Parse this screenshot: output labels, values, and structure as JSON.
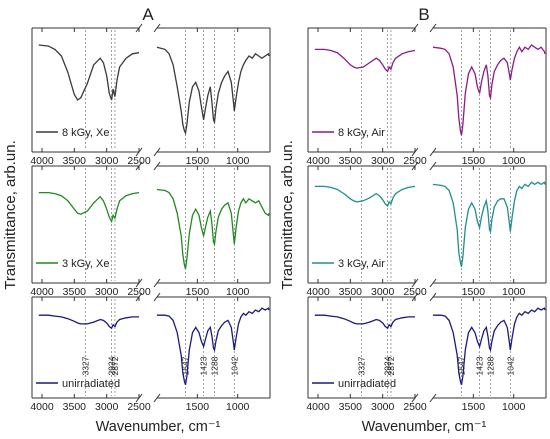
{
  "figure": {
    "panel_labels": [
      "A",
      "B"
    ],
    "ylabel": "Transmittance, arb.un.",
    "xlabel": "Wavenumber, cm⁻¹",
    "axis_break_mark": "//",
    "x_ticks": [
      "4000",
      "3500",
      "3000",
      "2500",
      "1500",
      "1000"
    ],
    "x_tick_values": [
      4000,
      3500,
      3000,
      2500,
      1500,
      1000
    ],
    "x_axis": {
      "left_segment": [
        4000,
        2500
      ],
      "right_segment": [
        2000,
        600
      ],
      "reversed": true,
      "break_between": [
        2500,
        2000
      ]
    },
    "peak_labels": [
      "3327",
      "2924",
      "2872",
      "1647",
      "1423",
      "1288",
      "1042"
    ],
    "peak_positions": [
      3327,
      2924,
      2872,
      1647,
      1423,
      1288,
      1042
    ],
    "colors": {
      "xe_8": "#3a3a3a",
      "xe_3": "#1f8a1f",
      "air_8": "#8b1a8b",
      "air_3": "#1f8f8f",
      "unirradiated": "#1a1a80"
    }
  },
  "chart_data": [
    {
      "type": "line",
      "panel": "A",
      "title": "A",
      "ylabel": "Transmittance, arb.un.",
      "xlabel": "Wavenumber, cm⁻¹",
      "stacked_subplots": true,
      "x_reversed": true,
      "axis_break": [
        2500,
        2000
      ],
      "series": [
        {
          "name": "8 kGy, Xe",
          "color": "#3a3a3a",
          "x": [
            4050,
            3900,
            3800,
            3700,
            3600,
            3500,
            3450,
            3400,
            3300,
            3200,
            3100,
            3050,
            3000,
            2960,
            2924,
            2900,
            2872,
            2840,
            2800,
            2700,
            2600,
            2500,
            2000,
            1900,
            1850,
            1800,
            1750,
            1700,
            1680,
            1660,
            1647,
            1630,
            1600,
            1560,
            1520,
            1480,
            1450,
            1423,
            1400,
            1370,
            1340,
            1320,
            1300,
            1288,
            1270,
            1240,
            1200,
            1160,
            1120,
            1080,
            1050,
            1042,
            1020,
            990,
            960,
            930,
            900,
            860,
            820,
            780,
            740,
            700,
            660,
            620,
            600
          ],
          "values": [
            0.9,
            0.89,
            0.86,
            0.8,
            0.65,
            0.45,
            0.4,
            0.42,
            0.55,
            0.72,
            0.78,
            0.74,
            0.62,
            0.46,
            0.4,
            0.5,
            0.43,
            0.58,
            0.7,
            0.78,
            0.82,
            0.83,
            0.88,
            0.86,
            0.82,
            0.72,
            0.52,
            0.3,
            0.18,
            0.12,
            0.1,
            0.18,
            0.38,
            0.52,
            0.56,
            0.48,
            0.34,
            0.22,
            0.32,
            0.44,
            0.52,
            0.38,
            0.22,
            0.2,
            0.32,
            0.46,
            0.56,
            0.62,
            0.66,
            0.56,
            0.36,
            0.3,
            0.42,
            0.56,
            0.66,
            0.72,
            0.76,
            0.8,
            0.78,
            0.82,
            0.8,
            0.78,
            0.8,
            0.82,
            0.8
          ]
        },
        {
          "name": "3 kGy, Xe",
          "color": "#1f8a1f",
          "x": [
            4050,
            3900,
            3800,
            3700,
            3600,
            3500,
            3450,
            3400,
            3300,
            3200,
            3100,
            3050,
            3000,
            2960,
            2924,
            2900,
            2872,
            2840,
            2800,
            2700,
            2600,
            2500,
            2000,
            1900,
            1850,
            1800,
            1750,
            1700,
            1680,
            1660,
            1647,
            1630,
            1600,
            1560,
            1520,
            1480,
            1450,
            1423,
            1400,
            1370,
            1340,
            1320,
            1300,
            1288,
            1270,
            1240,
            1200,
            1160,
            1120,
            1080,
            1050,
            1042,
            1020,
            990,
            960,
            930,
            900,
            860,
            820,
            780,
            740,
            700,
            660,
            620,
            600
          ],
          "values": [
            0.8,
            0.8,
            0.79,
            0.77,
            0.72,
            0.64,
            0.6,
            0.59,
            0.62,
            0.7,
            0.76,
            0.72,
            0.64,
            0.56,
            0.52,
            0.58,
            0.55,
            0.64,
            0.72,
            0.77,
            0.79,
            0.8,
            0.83,
            0.82,
            0.8,
            0.74,
            0.6,
            0.38,
            0.2,
            0.1,
            0.06,
            0.16,
            0.4,
            0.58,
            0.64,
            0.58,
            0.46,
            0.38,
            0.46,
            0.56,
            0.62,
            0.5,
            0.32,
            0.3,
            0.42,
            0.56,
            0.64,
            0.68,
            0.7,
            0.6,
            0.36,
            0.3,
            0.46,
            0.62,
            0.7,
            0.74,
            0.7,
            0.74,
            0.72,
            0.7,
            0.72,
            0.66,
            0.6,
            0.58,
            0.6
          ]
        },
        {
          "name": "unirradiated",
          "color": "#1a1a80",
          "x": [
            4050,
            3900,
            3800,
            3700,
            3600,
            3500,
            3450,
            3400,
            3300,
            3200,
            3100,
            3050,
            3000,
            2960,
            2924,
            2900,
            2872,
            2840,
            2800,
            2700,
            2600,
            2500,
            2000,
            1900,
            1850,
            1800,
            1750,
            1700,
            1680,
            1660,
            1647,
            1630,
            1600,
            1560,
            1520,
            1480,
            1450,
            1423,
            1400,
            1370,
            1340,
            1320,
            1300,
            1288,
            1270,
            1240,
            1200,
            1160,
            1120,
            1080,
            1050,
            1042,
            1020,
            990,
            960,
            930,
            900,
            860,
            820,
            780,
            740,
            700,
            660,
            620,
            600
          ],
          "values": [
            0.86,
            0.86,
            0.85,
            0.84,
            0.82,
            0.79,
            0.77,
            0.76,
            0.76,
            0.78,
            0.81,
            0.8,
            0.77,
            0.73,
            0.71,
            0.75,
            0.73,
            0.78,
            0.81,
            0.83,
            0.84,
            0.84,
            0.86,
            0.86,
            0.85,
            0.8,
            0.66,
            0.4,
            0.2,
            0.1,
            0.06,
            0.16,
            0.46,
            0.66,
            0.72,
            0.66,
            0.56,
            0.5,
            0.58,
            0.68,
            0.72,
            0.62,
            0.48,
            0.46,
            0.56,
            0.68,
            0.74,
            0.78,
            0.8,
            0.72,
            0.52,
            0.46,
            0.6,
            0.76,
            0.84,
            0.88,
            0.86,
            0.9,
            0.88,
            0.92,
            0.9,
            0.94,
            0.92,
            0.94,
            0.92
          ]
        }
      ]
    },
    {
      "type": "line",
      "panel": "B",
      "title": "B",
      "ylabel": "Transmittance, arb.un.",
      "xlabel": "Wavenumber, cm⁻¹",
      "stacked_subplots": true,
      "x_reversed": true,
      "axis_break": [
        2500,
        2000
      ],
      "series": [
        {
          "name": "8 kGy, Air",
          "color": "#8b1a8b",
          "x": [
            4050,
            3900,
            3800,
            3700,
            3600,
            3500,
            3450,
            3400,
            3300,
            3200,
            3100,
            3050,
            3000,
            2960,
            2924,
            2900,
            2872,
            2840,
            2800,
            2700,
            2600,
            2500,
            2000,
            1900,
            1850,
            1800,
            1750,
            1700,
            1680,
            1660,
            1647,
            1630,
            1600,
            1560,
            1520,
            1480,
            1450,
            1423,
            1400,
            1370,
            1340,
            1320,
            1300,
            1288,
            1270,
            1240,
            1200,
            1160,
            1120,
            1080,
            1050,
            1042,
            1020,
            990,
            960,
            930,
            900,
            860,
            820,
            780,
            740,
            700,
            660,
            620,
            600
          ],
          "values": [
            0.86,
            0.86,
            0.85,
            0.83,
            0.78,
            0.72,
            0.7,
            0.69,
            0.7,
            0.74,
            0.78,
            0.76,
            0.72,
            0.68,
            0.66,
            0.7,
            0.68,
            0.74,
            0.78,
            0.82,
            0.84,
            0.85,
            0.88,
            0.87,
            0.86,
            0.82,
            0.7,
            0.44,
            0.24,
            0.12,
            0.08,
            0.18,
            0.46,
            0.64,
            0.7,
            0.64,
            0.52,
            0.46,
            0.56,
            0.66,
            0.72,
            0.62,
            0.44,
            0.42,
            0.54,
            0.66,
            0.72,
            0.76,
            0.78,
            0.74,
            0.62,
            0.58,
            0.68,
            0.78,
            0.84,
            0.88,
            0.84,
            0.88,
            0.86,
            0.9,
            0.88,
            0.86,
            0.88,
            0.84,
            0.82
          ]
        },
        {
          "name": "3 kGy, Air",
          "color": "#1f8f8f",
          "x": [
            4050,
            3900,
            3800,
            3700,
            3600,
            3500,
            3450,
            3400,
            3300,
            3200,
            3100,
            3050,
            3000,
            2960,
            2924,
            2900,
            2872,
            2840,
            2800,
            2700,
            2600,
            2500,
            2000,
            1900,
            1850,
            1800,
            1750,
            1700,
            1680,
            1660,
            1647,
            1630,
            1600,
            1560,
            1520,
            1480,
            1450,
            1423,
            1400,
            1370,
            1340,
            1320,
            1300,
            1288,
            1270,
            1240,
            1200,
            1160,
            1120,
            1080,
            1050,
            1042,
            1020,
            990,
            960,
            930,
            900,
            860,
            820,
            780,
            740,
            700,
            660,
            620,
            600
          ],
          "values": [
            0.86,
            0.86,
            0.85,
            0.83,
            0.79,
            0.74,
            0.72,
            0.71,
            0.72,
            0.75,
            0.79,
            0.77,
            0.73,
            0.69,
            0.67,
            0.71,
            0.69,
            0.75,
            0.79,
            0.83,
            0.85,
            0.86,
            0.88,
            0.87,
            0.86,
            0.82,
            0.7,
            0.44,
            0.22,
            0.12,
            0.08,
            0.18,
            0.46,
            0.64,
            0.7,
            0.64,
            0.52,
            0.46,
            0.56,
            0.66,
            0.72,
            0.62,
            0.44,
            0.42,
            0.54,
            0.66,
            0.72,
            0.74,
            0.74,
            0.66,
            0.48,
            0.42,
            0.56,
            0.72,
            0.82,
            0.86,
            0.84,
            0.88,
            0.86,
            0.9,
            0.88,
            0.9,
            0.88,
            0.9,
            0.88
          ]
        },
        {
          "name": "unirradiated",
          "color": "#1a1a80",
          "x": [
            4050,
            3900,
            3800,
            3700,
            3600,
            3500,
            3450,
            3400,
            3300,
            3200,
            3100,
            3050,
            3000,
            2960,
            2924,
            2900,
            2872,
            2840,
            2800,
            2700,
            2600,
            2500,
            2000,
            1900,
            1850,
            1800,
            1750,
            1700,
            1680,
            1660,
            1647,
            1630,
            1600,
            1560,
            1520,
            1480,
            1450,
            1423,
            1400,
            1370,
            1340,
            1320,
            1300,
            1288,
            1270,
            1240,
            1200,
            1160,
            1120,
            1080,
            1050,
            1042,
            1020,
            990,
            960,
            930,
            900,
            860,
            820,
            780,
            740,
            700,
            660,
            620,
            600
          ],
          "values": [
            0.86,
            0.86,
            0.85,
            0.84,
            0.82,
            0.79,
            0.77,
            0.76,
            0.76,
            0.78,
            0.81,
            0.8,
            0.77,
            0.73,
            0.71,
            0.75,
            0.73,
            0.78,
            0.81,
            0.83,
            0.84,
            0.84,
            0.86,
            0.86,
            0.85,
            0.8,
            0.66,
            0.4,
            0.2,
            0.1,
            0.06,
            0.16,
            0.46,
            0.66,
            0.72,
            0.66,
            0.56,
            0.5,
            0.58,
            0.68,
            0.72,
            0.62,
            0.48,
            0.46,
            0.56,
            0.68,
            0.74,
            0.78,
            0.8,
            0.72,
            0.52,
            0.46,
            0.6,
            0.76,
            0.84,
            0.88,
            0.86,
            0.9,
            0.88,
            0.92,
            0.9,
            0.94,
            0.92,
            0.94,
            0.92
          ]
        }
      ]
    }
  ]
}
